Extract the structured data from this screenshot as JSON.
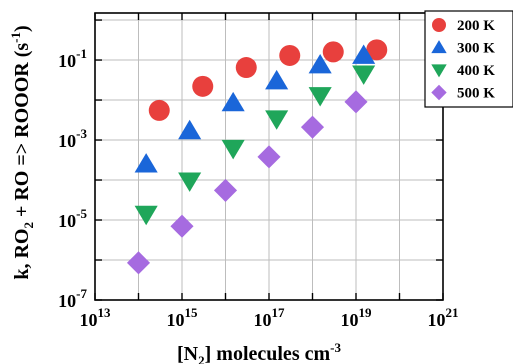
{
  "chart_data": {
    "type": "scatter",
    "title": "",
    "xlabel": {
      "text": "[N",
      "sub": "2",
      "tail": "] molecules cm",
      "sup": "-3"
    },
    "ylabel": {
      "text": "k, RO",
      "sub": "2",
      "tail": " + RO => ROOOR (s",
      "sup": "-1",
      "end": ")"
    },
    "x_scale": "log",
    "y_scale": "log",
    "xlim": [
      10000000000000.0,
      1e+21
    ],
    "ylim": [
      1e-07,
      1.5
    ],
    "x_ticks": [
      {
        "value": 10000000000000.0,
        "base": "10",
        "exp": "13"
      },
      {
        "value": 1000000000000000.0,
        "base": "10",
        "exp": "15"
      },
      {
        "value": 1e+17,
        "base": "10",
        "exp": "17"
      },
      {
        "value": 1e+19,
        "base": "10",
        "exp": "19"
      },
      {
        "value": 1e+21,
        "base": "10",
        "exp": "21"
      }
    ],
    "y_ticks": [
      {
        "value": 1e-07,
        "base": "10",
        "exp": "-7"
      },
      {
        "value": 1e-05,
        "base": "10",
        "exp": "-5"
      },
      {
        "value": 0.001,
        "base": "10",
        "exp": "-3"
      },
      {
        "value": 0.1,
        "base": "10",
        "exp": "-1"
      }
    ],
    "grid": true,
    "legend_position": "top-right",
    "series": [
      {
        "name": "200 K",
        "marker": "circle",
        "color": "#e8403d",
        "points": [
          [
            300000000000000.0,
            0.0055
          ],
          [
            3000000000000000.0,
            0.022
          ],
          [
            3e+16,
            0.065
          ],
          [
            3e+17,
            0.13
          ],
          [
            3e+18,
            0.16
          ],
          [
            3e+19,
            0.18
          ]
        ]
      },
      {
        "name": "300 K",
        "marker": "triangle-up",
        "color": "#1a66d9",
        "points": [
          [
            150000000000000.0,
            0.00025
          ],
          [
            1500000000000000.0,
            0.0017
          ],
          [
            1.5e+16,
            0.0085
          ],
          [
            1.5e+17,
            0.03
          ],
          [
            1.5e+18,
            0.075
          ],
          [
            1.5e+19,
            0.13
          ]
        ]
      },
      {
        "name": "400 K",
        "marker": "triangle-down",
        "color": "#1fa65a",
        "points": [
          [
            150000000000000.0,
            1.4e-05
          ],
          [
            1500000000000000.0,
            9.5e-05
          ],
          [
            1.5e+16,
            0.00062
          ],
          [
            1.5e+17,
            0.0034
          ],
          [
            1.5e+18,
            0.013
          ],
          [
            1.5e+19,
            0.045
          ]
        ]
      },
      {
        "name": "500 K",
        "marker": "diamond",
        "color": "#a66be0",
        "points": [
          [
            100000000000000.0,
            8.5e-07
          ],
          [
            1000000000000000.0,
            7e-06
          ],
          [
            1e+16,
            5.5e-05
          ],
          [
            1e+17,
            0.00038
          ],
          [
            1e+18,
            0.0021
          ],
          [
            1e+19,
            0.009
          ]
        ]
      }
    ]
  }
}
